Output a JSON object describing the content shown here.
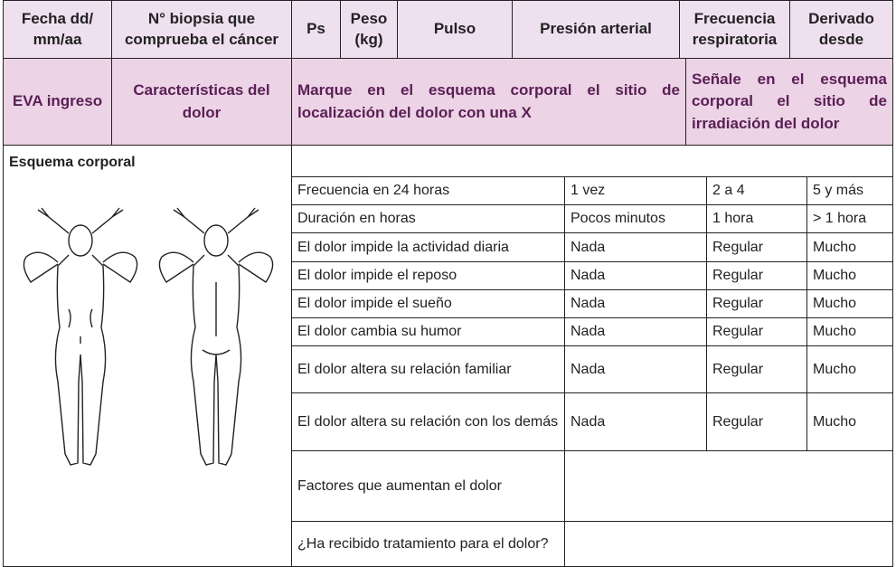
{
  "header_row": [
    "Fecha dd/ mm/aa",
    "N° biopsia que comprueba el cáncer",
    "Ps",
    "Peso (kg)",
    "Pulso",
    "Presión arterial",
    "Frecuencia respiratoria",
    "Derivado desde"
  ],
  "subheader_row": [
    "EVA ingreso",
    "Características del dolor",
    "Marque en el esquema corporal el sitio de localización del dolor con una X",
    "Señale en el esquema corporal el sitio de irradiación del dolor"
  ],
  "body": {
    "left_title": "Esquema corporal",
    "rows": [
      [
        "Frecuencia en 24 horas",
        "1 vez",
        "2 a 4",
        "5 y más"
      ],
      [
        "Duración en horas",
        "Pocos minutos",
        "1 hora",
        "> 1 hora"
      ],
      [
        "El dolor impide la actividad diaria",
        "Nada",
        "Regular",
        "Mucho"
      ],
      [
        "El dolor impide el reposo",
        "Nada",
        "Regular",
        "Mucho"
      ],
      [
        "El dolor impide el sueño",
        "Nada",
        "Regular",
        "Mucho"
      ],
      [
        "El dolor cambia su humor",
        "Nada",
        "Regular",
        "Mucho"
      ],
      [
        "El dolor altera su relación familiar",
        "Nada",
        "Regular",
        "Mucho"
      ],
      [
        "El dolor altera su relación con los demás",
        "Nada",
        "Regular",
        "Mucho"
      ],
      [
        "Factores que aumentan el dolor"
      ],
      [
        "¿Ha recibido tratamiento para el dolor?"
      ]
    ]
  }
}
